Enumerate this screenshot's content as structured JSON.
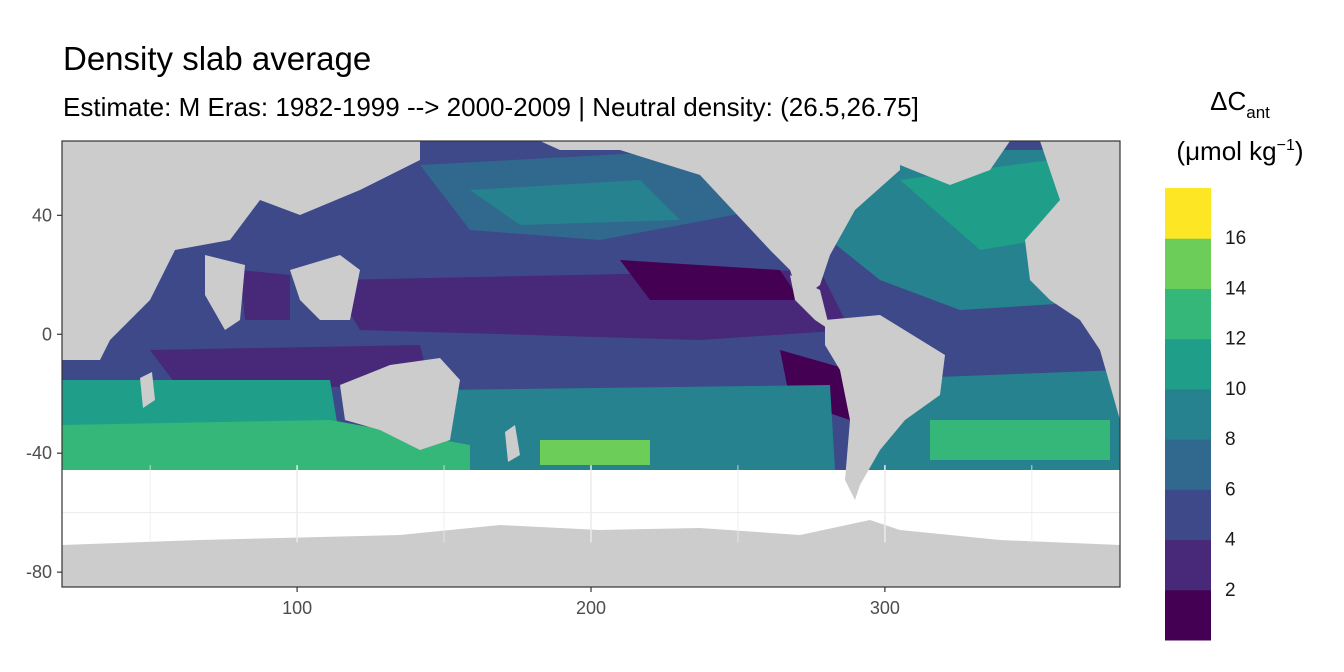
{
  "title": "Density slab average",
  "subtitle": "Estimate: M Eras: 1982-1999 --> 2000-2009 | Neutral density: (26.5,26.75]",
  "legend": {
    "title_main": "ΔC",
    "title_sub": "ant",
    "units_pre": "(μmol kg",
    "units_sup": "−1",
    "units_post": ")",
    "labels": [
      "2",
      "4",
      "6",
      "8",
      "10",
      "12",
      "14",
      "16"
    ],
    "colors": [
      "#440154",
      "#482878",
      "#3E4989",
      "#31688E",
      "#26828E",
      "#1F9E89",
      "#35B779",
      "#6DCD59",
      "#B4DE2C",
      "#FDE725"
    ]
  },
  "colors": {
    "land": "#cccccc",
    "nodata": "#ffffff",
    "grid": "#ebebeb",
    "panel_border": "#333333"
  },
  "chart_data": {
    "type": "heatmap",
    "title": "Density slab average",
    "subtitle": "Estimate: M Eras: 1982-1999 --> 2000-2009 | Neutral density: (26.5,26.75]",
    "xlabel": "",
    "ylabel": "",
    "xlim": [
      20,
      380
    ],
    "ylim": [
      -85,
      65
    ],
    "x_ticks": [
      100,
      200,
      300
    ],
    "y_ticks": [
      40,
      0,
      -40,
      -80
    ],
    "y_tick_labels": [
      "40",
      "0",
      "-40",
      "-80"
    ],
    "legend_title": "ΔCant (μmol kg−1)",
    "color_bins": [
      [
        0,
        2
      ],
      [
        2,
        4
      ],
      [
        4,
        6
      ],
      [
        6,
        8
      ],
      [
        8,
        10
      ],
      [
        10,
        12
      ],
      [
        12,
        14
      ],
      [
        14,
        16
      ],
      [
        16,
        18
      ]
    ],
    "data_lat_range": [
      -44,
      65
    ],
    "grid": true
  }
}
